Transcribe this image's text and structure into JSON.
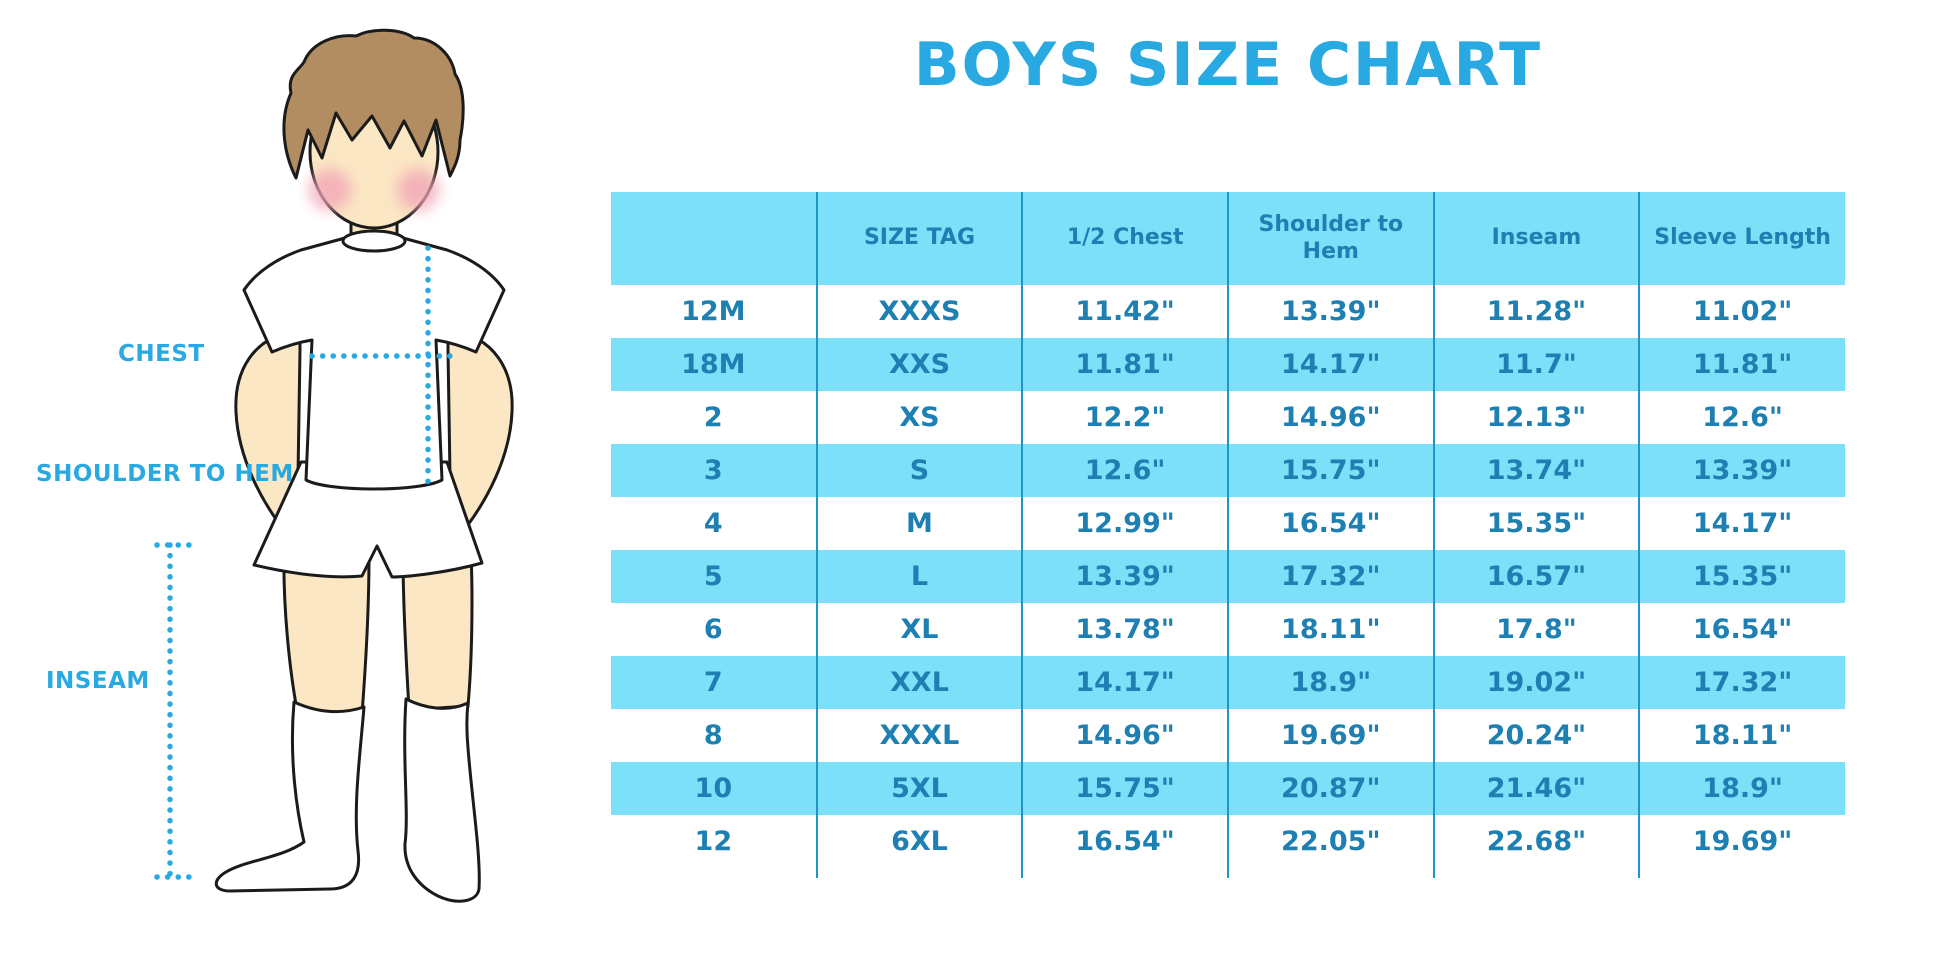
{
  "chart_data": {
    "type": "table",
    "title": "BOYS SIZE CHART",
    "columns": [
      "",
      "SIZE TAG",
      "1/2 Chest",
      "Shoulder to Hem",
      "Inseam",
      "Sleeve Length"
    ],
    "rows": [
      [
        "12M",
        "XXXS",
        "11.42\"",
        "13.39\"",
        "11.28\"",
        "11.02\""
      ],
      [
        "18M",
        "XXS",
        "11.81\"",
        "14.17\"",
        "11.7\"",
        "11.81\""
      ],
      [
        "2",
        "XS",
        "12.2\"",
        "14.96\"",
        "12.13\"",
        "12.6\""
      ],
      [
        "3",
        "S",
        "12.6\"",
        "15.75\"",
        "13.74\"",
        "13.39\""
      ],
      [
        "4",
        "M",
        "12.99\"",
        "16.54\"",
        "15.35\"",
        "14.17\""
      ],
      [
        "5",
        "L",
        "13.39\"",
        "17.32\"",
        "16.57\"",
        "15.35\""
      ],
      [
        "6",
        "XL",
        "13.78\"",
        "18.11\"",
        "17.8\"",
        "16.54\""
      ],
      [
        "7",
        "XXL",
        "14.17\"",
        "18.9\"",
        "19.02\"",
        "17.32\""
      ],
      [
        "8",
        "XXXL",
        "14.96\"",
        "19.69\"",
        "20.24\"",
        "18.11\""
      ],
      [
        "10",
        "5XL",
        "15.75\"",
        "20.87\"",
        "21.46\"",
        "18.9\""
      ],
      [
        "12",
        "6XL",
        "16.54\"",
        "22.05\"",
        "22.68\"",
        "19.69\""
      ]
    ],
    "layout": {
      "alternating_row_colors": true,
      "gridlines": "vertical-only"
    }
  },
  "diagram": {
    "chest_label": "CHEST",
    "shoulder_label": "SHOULDER TO HEM",
    "inseam_label": "INSEAM"
  },
  "colors": {
    "accent": "#29A9E1",
    "band": "#7CE0F8",
    "table_text": "#1D7FB2",
    "divider": "#2095C8"
  }
}
